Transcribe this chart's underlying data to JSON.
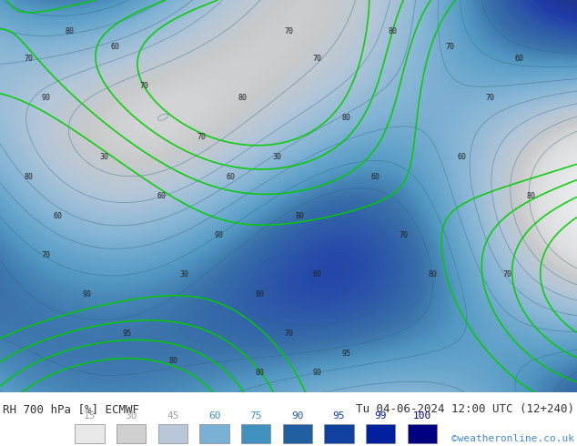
{
  "title_left": "RH 700 hPa [%] ECMWF",
  "title_right": "Tu 04-06-2024 12:00 UTC (12+240)",
  "credit": "©weatheronline.co.uk",
  "legend_values": [
    15,
    30,
    45,
    60,
    75,
    90,
    95,
    99,
    100
  ],
  "legend_colors": [
    "#e8e8e8",
    "#d0d0d0",
    "#b8c8d8",
    "#7ab0d4",
    "#4090c0",
    "#2060a0",
    "#1040a0",
    "#0020a0",
    "#000080"
  ],
  "legend_text_colors": [
    "#a0a0a0",
    "#a0a0a0",
    "#a0a0a0",
    "#4090c0",
    "#4090c0",
    "#2060a0",
    "#1040a0",
    "#0020a0",
    "#000080"
  ],
  "bg_color": "#ffffff",
  "map_bg": "#c8d8e8",
  "fig_width": 6.34,
  "fig_height": 4.9,
  "dpi": 100
}
